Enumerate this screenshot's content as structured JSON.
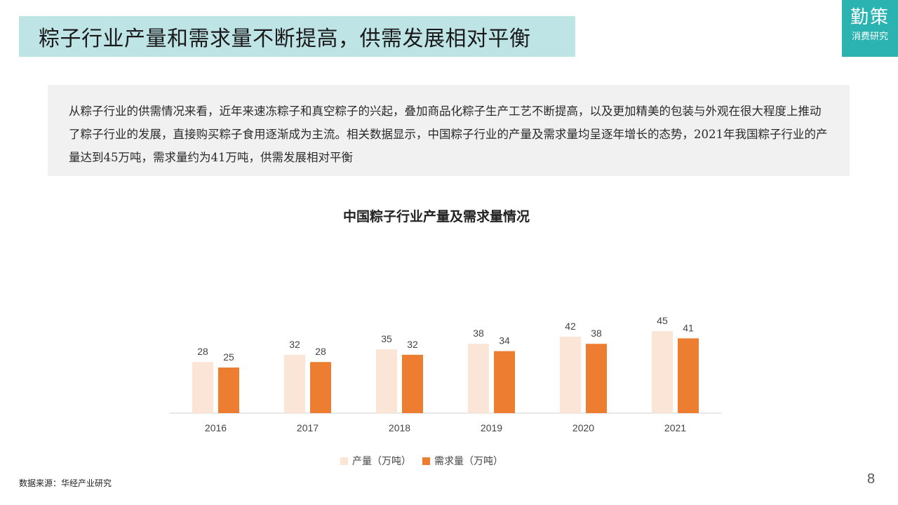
{
  "header": {
    "title": "粽子行业产量和需求量不断提高，供需发展相对平衡"
  },
  "logo": {
    "brand": "勤策",
    "sub": "消费研究"
  },
  "summary": {
    "text": "从粽子行业的供需情况来看，近年来速冻粽子和真空粽子的兴起，叠加商品化粽子生产工艺不断提高，以及更加精美的包装与外观在很大程度上推动了粽子行业的发展，直接购买粽子食用逐渐成为主流。相关数据显示，中国粽子行业的产量及需求量均呈逐年增长的态势，2021年我国粽子行业的产量达到45万吨，需求量约为41万吨，供需发展相对平衡"
  },
  "chart_data": {
    "type": "bar",
    "title": "中国粽子行业产量及需求量情况",
    "categories": [
      "2016",
      "2017",
      "2018",
      "2019",
      "2020",
      "2021"
    ],
    "series": [
      {
        "name": "产量（万吨）",
        "values": [
          28,
          32,
          35,
          38,
          42,
          45
        ],
        "color": "#fbe5d6"
      },
      {
        "name": "需求量（万吨）",
        "values": [
          25,
          28,
          32,
          34,
          38,
          41
        ],
        "color": "#ed7d31"
      }
    ],
    "ylim": [
      0,
      50
    ],
    "grid": false,
    "legend_position": "bottom"
  },
  "footer": {
    "source": "数据来源：华经产业研究",
    "page": "8"
  }
}
